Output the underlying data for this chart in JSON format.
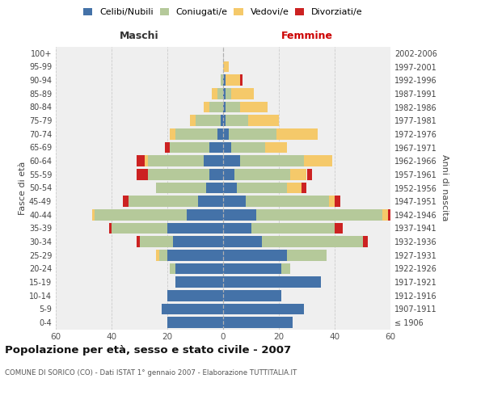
{
  "age_groups": [
    "100+",
    "95-99",
    "90-94",
    "85-89",
    "80-84",
    "75-79",
    "70-74",
    "65-69",
    "60-64",
    "55-59",
    "50-54",
    "45-49",
    "40-44",
    "35-39",
    "30-34",
    "25-29",
    "20-24",
    "15-19",
    "10-14",
    "5-9",
    "0-4"
  ],
  "birth_years": [
    "≤ 1906",
    "1907-1911",
    "1912-1916",
    "1917-1921",
    "1922-1926",
    "1927-1931",
    "1932-1936",
    "1937-1941",
    "1942-1946",
    "1947-1951",
    "1952-1956",
    "1957-1961",
    "1962-1966",
    "1967-1971",
    "1972-1976",
    "1977-1981",
    "1982-1986",
    "1987-1991",
    "1992-1996",
    "1997-2001",
    "2002-2006"
  ],
  "colors": {
    "celibi": "#4472a8",
    "coniugati": "#b5c99a",
    "vedovi": "#f5c96a",
    "divorziati": "#cc2222"
  },
  "male": {
    "celibi": [
      0,
      0,
      0,
      0,
      0,
      1,
      2,
      5,
      7,
      5,
      6,
      9,
      13,
      20,
      18,
      20,
      17,
      17,
      20,
      22,
      20
    ],
    "coniugati": [
      0,
      0,
      1,
      2,
      5,
      9,
      15,
      14,
      20,
      22,
      18,
      25,
      33,
      20,
      12,
      3,
      2,
      0,
      0,
      0,
      0
    ],
    "vedovi": [
      0,
      0,
      0,
      2,
      2,
      2,
      2,
      0,
      1,
      0,
      0,
      0,
      1,
      0,
      0,
      1,
      0,
      0,
      0,
      0,
      0
    ],
    "divorziati": [
      0,
      0,
      0,
      0,
      0,
      0,
      0,
      2,
      3,
      4,
      0,
      2,
      0,
      1,
      1,
      0,
      0,
      0,
      0,
      0,
      0
    ]
  },
  "female": {
    "celibi": [
      0,
      0,
      1,
      1,
      1,
      1,
      2,
      3,
      6,
      4,
      5,
      8,
      12,
      10,
      14,
      23,
      21,
      35,
      21,
      29,
      25
    ],
    "coniugati": [
      0,
      0,
      0,
      2,
      5,
      8,
      17,
      12,
      23,
      20,
      18,
      30,
      45,
      30,
      36,
      14,
      3,
      0,
      0,
      0,
      0
    ],
    "vedovi": [
      0,
      2,
      5,
      8,
      10,
      11,
      15,
      8,
      10,
      6,
      5,
      2,
      2,
      0,
      0,
      0,
      0,
      0,
      0,
      0,
      0
    ],
    "divorziati": [
      0,
      0,
      1,
      0,
      0,
      0,
      0,
      0,
      0,
      2,
      2,
      2,
      1,
      3,
      2,
      0,
      0,
      0,
      0,
      0,
      0
    ]
  },
  "xlim": 60,
  "title": "Popolazione per età, sesso e stato civile - 2007",
  "subtitle": "COMUNE DI SORICO (CO) - Dati ISTAT 1° gennaio 2007 - Elaborazione TUTTITALIA.IT",
  "ylabel_left": "Fasce di età",
  "ylabel_right": "Anni di nascita",
  "xlabel_left": "Maschi",
  "xlabel_right": "Femmine",
  "legend_labels": [
    "Celibi/Nubili",
    "Coniugati/e",
    "Vedovi/e",
    "Divorziati/e"
  ],
  "background_color": "#ffffff",
  "plot_bg": "#efefef"
}
